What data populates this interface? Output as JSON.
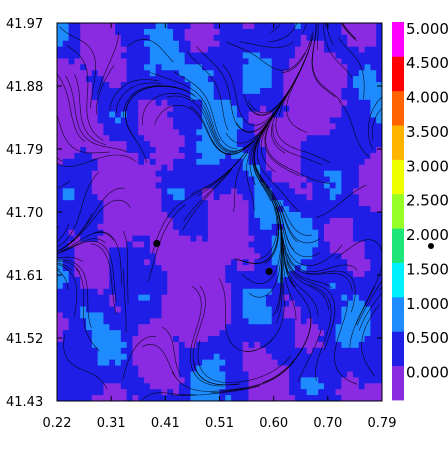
{
  "chart_data": {
    "type": "heatmap",
    "subtype": "filled-contour-with-streamlines",
    "title": "",
    "xlabel": "",
    "ylabel": "",
    "xlim": [
      0.22,
      0.79
    ],
    "ylim": [
      41.43,
      41.97
    ],
    "x_ticks": [
      "0.22",
      "0.31",
      "0.41",
      "0.51",
      "0.60",
      "0.70",
      "0.79"
    ],
    "y_ticks": [
      "41.97",
      "41.88",
      "41.79",
      "41.70",
      "41.61",
      "41.52",
      "41.43"
    ],
    "colorbar": {
      "levels": [
        0.0,
        0.5,
        1.0,
        1.5,
        2.0,
        2.5,
        3.0,
        3.5,
        4.0,
        4.5,
        5.0,
        5.5
      ],
      "tick_labels": [
        "0.000",
        "0.500",
        "1.000",
        "1.500",
        "2.000",
        "2.500",
        "3.000",
        "3.500",
        "4.000",
        "4.500",
        "5.000"
      ],
      "colors": [
        "#8a2be2",
        "#1e1ee6",
        "#1e8cff",
        "#00f0ff",
        "#1ee678",
        "#96ff28",
        "#f0ff00",
        "#ffb400",
        "#ff6400",
        "#ff0000",
        "#ff00ff"
      ]
    },
    "points": [
      {
        "x": 0.395,
        "y": 41.655
      },
      {
        "x": 0.592,
        "y": 41.615
      }
    ],
    "legend_marker": {
      "shape": "dot",
      "label": ""
    },
    "grid": false
  }
}
